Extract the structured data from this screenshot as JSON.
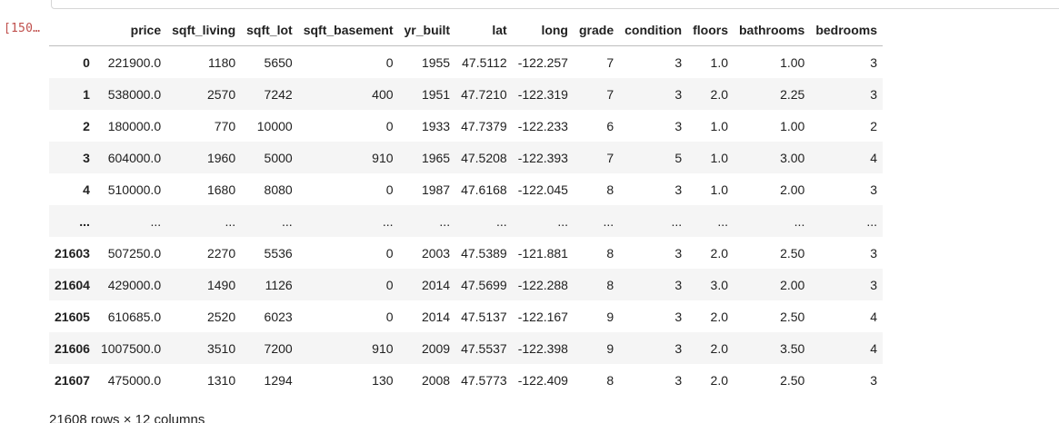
{
  "cell": {
    "exec_count": "[150…"
  },
  "table": {
    "columns": [
      "price",
      "sqft_living",
      "sqft_lot",
      "sqft_basement",
      "yr_built",
      "lat",
      "long",
      "grade",
      "condition",
      "floors",
      "bathrooms",
      "bedrooms"
    ],
    "rows": [
      {
        "index": "0",
        "cells": [
          "221900.0",
          "1180",
          "5650",
          "0",
          "1955",
          "47.5112",
          "-122.257",
          "7",
          "3",
          "1.0",
          "1.00",
          "3"
        ]
      },
      {
        "index": "1",
        "cells": [
          "538000.0",
          "2570",
          "7242",
          "400",
          "1951",
          "47.7210",
          "-122.319",
          "7",
          "3",
          "2.0",
          "2.25",
          "3"
        ]
      },
      {
        "index": "2",
        "cells": [
          "180000.0",
          "770",
          "10000",
          "0",
          "1933",
          "47.7379",
          "-122.233",
          "6",
          "3",
          "1.0",
          "1.00",
          "2"
        ]
      },
      {
        "index": "3",
        "cells": [
          "604000.0",
          "1960",
          "5000",
          "910",
          "1965",
          "47.5208",
          "-122.393",
          "7",
          "5",
          "1.0",
          "3.00",
          "4"
        ]
      },
      {
        "index": "4",
        "cells": [
          "510000.0",
          "1680",
          "8080",
          "0",
          "1987",
          "47.6168",
          "-122.045",
          "8",
          "3",
          "1.0",
          "2.00",
          "3"
        ]
      },
      {
        "index": "...",
        "cells": [
          "...",
          "...",
          "...",
          "...",
          "...",
          "...",
          "...",
          "...",
          "...",
          "...",
          "...",
          "..."
        ]
      },
      {
        "index": "21603",
        "cells": [
          "507250.0",
          "2270",
          "5536",
          "0",
          "2003",
          "47.5389",
          "-121.881",
          "8",
          "3",
          "2.0",
          "2.50",
          "3"
        ]
      },
      {
        "index": "21604",
        "cells": [
          "429000.0",
          "1490",
          "1126",
          "0",
          "2014",
          "47.5699",
          "-122.288",
          "8",
          "3",
          "3.0",
          "2.00",
          "3"
        ]
      },
      {
        "index": "21605",
        "cells": [
          "610685.0",
          "2520",
          "6023",
          "0",
          "2014",
          "47.5137",
          "-122.167",
          "9",
          "3",
          "2.0",
          "2.50",
          "4"
        ]
      },
      {
        "index": "21606",
        "cells": [
          "1007500.0",
          "3510",
          "7200",
          "910",
          "2009",
          "47.5537",
          "-122.398",
          "9",
          "3",
          "2.0",
          "3.50",
          "4"
        ]
      },
      {
        "index": "21607",
        "cells": [
          "475000.0",
          "1310",
          "1294",
          "130",
          "2008",
          "47.5773",
          "-122.409",
          "8",
          "3",
          "2.0",
          "2.50",
          "3"
        ]
      }
    ]
  },
  "footer": {
    "summary": "21608 rows × 12 columns"
  }
}
